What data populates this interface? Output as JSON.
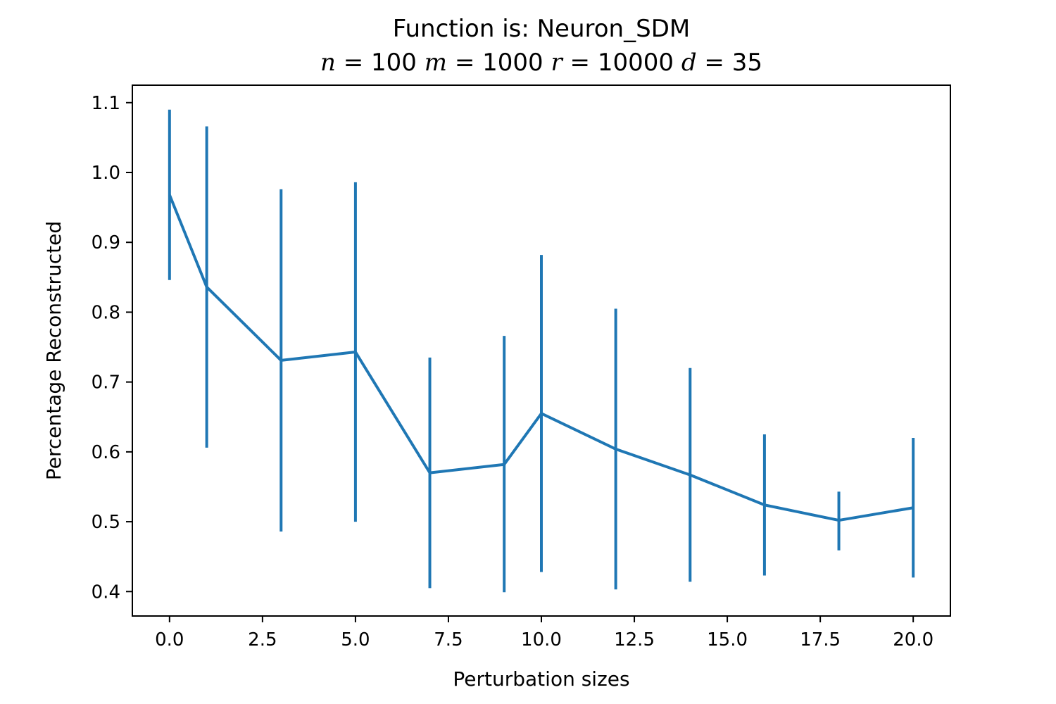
{
  "chart_data": {
    "type": "line",
    "title": "Function is: Neuron_SDM",
    "subtitle": {
      "n_label": "n",
      "n_value": "100",
      "m_label": "m",
      "m_value": "1000",
      "r_label": "r",
      "r_value": "10000",
      "d_label": "d",
      "d_value": "35"
    },
    "xlabel": "Perturbation sizes",
    "ylabel": "Percentage Reconstructed",
    "xlim": [
      -1.0,
      21.0
    ],
    "ylim": [
      0.365,
      1.125
    ],
    "xticks": [
      0.0,
      2.5,
      5.0,
      7.5,
      10.0,
      12.5,
      15.0,
      17.5,
      20.0
    ],
    "xtick_labels": [
      "0.0",
      "2.5",
      "5.0",
      "7.5",
      "10.0",
      "12.5",
      "15.0",
      "17.5",
      "20.0"
    ],
    "yticks": [
      0.4,
      0.5,
      0.6,
      0.7,
      0.8,
      0.9,
      1.0,
      1.1
    ],
    "ytick_labels": [
      "0.4",
      "0.5",
      "0.6",
      "0.7",
      "0.8",
      "0.9",
      "1.0",
      "1.1"
    ],
    "grid": false,
    "color": "#1f77b4",
    "series": [
      {
        "x": [
          0,
          1,
          3,
          5,
          7,
          9,
          10,
          12,
          14,
          16,
          18,
          20
        ],
        "y": [
          0.968,
          0.836,
          0.731,
          0.743,
          0.57,
          0.582,
          0.655,
          0.604,
          0.567,
          0.524,
          0.502,
          0.52
        ],
        "err_low": [
          0.846,
          0.606,
          0.486,
          0.5,
          0.405,
          0.399,
          0.428,
          0.403,
          0.414,
          0.423,
          0.459,
          0.42
        ],
        "err_high": [
          1.09,
          1.066,
          0.976,
          0.986,
          0.735,
          0.766,
          0.882,
          0.805,
          0.72,
          0.625,
          0.543,
          0.62
        ]
      }
    ]
  }
}
